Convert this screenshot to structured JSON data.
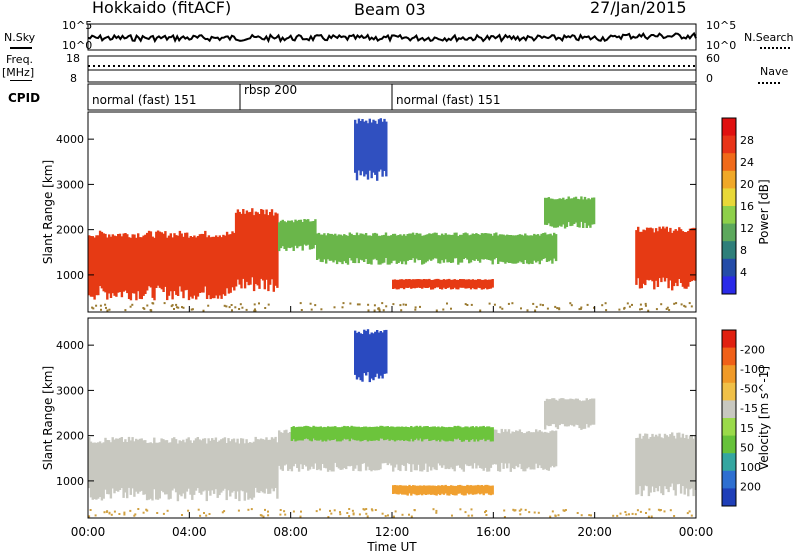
{
  "header": {
    "station": "Hokkaido (fitACF)",
    "beam": "Beam 03",
    "date": "27/Jan/2015"
  },
  "side_labels": {
    "n_sky": "N.Sky",
    "n_search": "N.Search",
    "freq": "Freq.",
    "freq_unit": "[MHz]",
    "nave": "Nave",
    "cpid": "CPID"
  },
  "chart_data": [
    {
      "type": "line",
      "name": "noise",
      "left_axis_labels": [
        "10^5",
        "10^0"
      ],
      "right_axis_labels": [
        "10^5",
        "10^0"
      ]
    },
    {
      "type": "line",
      "name": "frequency",
      "left_axis_labels": [
        "18",
        "8"
      ],
      "right_axis_labels": [
        "60",
        "0"
      ],
      "ylim_left": [
        8,
        18
      ],
      "ylim_right": [
        0,
        60
      ]
    },
    {
      "type": "table",
      "name": "cpid",
      "segments": [
        {
          "label": "normal (fast) 151",
          "start_hour": 0,
          "end_hour": 6
        },
        {
          "label": "rbsp 200",
          "start_hour": 6,
          "end_hour": 12
        },
        {
          "label": "normal (fast) 151",
          "start_hour": 12,
          "end_hour": 24
        }
      ]
    },
    {
      "type": "heatmap",
      "name": "power",
      "ylabel": "Slant Range [km]",
      "ylim": [
        180,
        4600
      ],
      "yticks": [
        1000,
        2000,
        3000,
        4000
      ],
      "colorbar_label": "Power [dB]",
      "colorbar_ticks": [
        4,
        8,
        12,
        16,
        20,
        24,
        28
      ],
      "colorbar_colors": [
        "#2a2ae8",
        "#244ca8",
        "#2e7f7a",
        "#5ca85c",
        "#8ed04a",
        "#e8d838",
        "#f0a828",
        "#f06a1a",
        "#e83418",
        "#e01010"
      ],
      "echo_regions": [
        {
          "t0": 0.0,
          "t1": 5.8,
          "r0": 600,
          "r1": 1900,
          "level": "high"
        },
        {
          "t0": 5.8,
          "t1": 7.5,
          "r0": 800,
          "r1": 2400,
          "level": "high"
        },
        {
          "t0": 7.5,
          "t1": 9.0,
          "r0": 1600,
          "r1": 2200,
          "level": "mid"
        },
        {
          "t0": 9.0,
          "t1": 18.5,
          "r0": 1300,
          "r1": 1900,
          "level": "mid"
        },
        {
          "t0": 12.0,
          "t1": 16.0,
          "r0": 700,
          "r1": 900,
          "level": "high"
        },
        {
          "t0": 18.0,
          "t1": 20.0,
          "r0": 2100,
          "r1": 2700,
          "level": "mid"
        },
        {
          "t0": 21.6,
          "t1": 24.0,
          "r0": 800,
          "r1": 2000,
          "level": "high"
        },
        {
          "t0": 10.5,
          "t1": 11.8,
          "r0": 3200,
          "r1": 4400,
          "level": "low"
        }
      ]
    },
    {
      "type": "heatmap",
      "name": "velocity",
      "xlabel": "Time UT",
      "ylabel": "Slant Range [km]",
      "ylim": [
        180,
        4600
      ],
      "yticks": [
        1000,
        2000,
        3000,
        4000
      ],
      "xticks": [
        "00:00",
        "04:00",
        "08:00",
        "12:00",
        "16:00",
        "20:00",
        "00:00"
      ],
      "colorbar_label": "Velocity [m s^-1]",
      "colorbar_ticks": [
        "200",
        "100",
        "50",
        "15",
        "-15",
        "-50",
        "-100",
        "-200"
      ],
      "colorbar_colors": [
        "#1f3fb8",
        "#2e6fd0",
        "#34a6a0",
        "#66c23a",
        "#9ada4a",
        "#c8c8c0",
        "#f0c048",
        "#f09a28",
        "#f06018",
        "#e02010"
      ],
      "echo_regions": [
        {
          "t0": 0.0,
          "t1": 7.5,
          "r0": 700,
          "r1": 1900,
          "level": "grey"
        },
        {
          "t0": 7.5,
          "t1": 18.5,
          "r0": 1300,
          "r1": 2100,
          "level": "grey"
        },
        {
          "t0": 8.0,
          "t1": 16.0,
          "r0": 1900,
          "r1": 2200,
          "level": "green"
        },
        {
          "t0": 12.0,
          "t1": 16.0,
          "r0": 700,
          "r1": 900,
          "level": "orange"
        },
        {
          "t0": 18.0,
          "t1": 20.0,
          "r0": 2200,
          "r1": 2800,
          "level": "grey"
        },
        {
          "t0": 21.6,
          "t1": 24.0,
          "r0": 800,
          "r1": 2000,
          "level": "grey"
        },
        {
          "t0": 10.5,
          "t1": 11.8,
          "r0": 3300,
          "r1": 4300,
          "level": "blue"
        }
      ]
    }
  ]
}
